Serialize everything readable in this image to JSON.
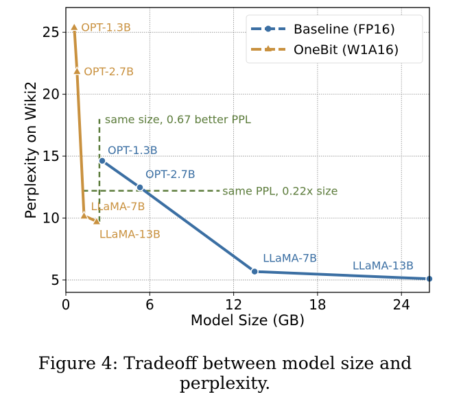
{
  "chart_data": {
    "type": "line",
    "xlabel": "Model Size (GB)",
    "ylabel": "Perplexity on Wiki2",
    "xlim": [
      0,
      26
    ],
    "ylim": [
      4,
      27
    ],
    "xticks": [
      0,
      6,
      12,
      18,
      24
    ],
    "yticks": [
      5,
      10,
      15,
      20,
      25
    ],
    "grid": true,
    "legend_position": "top-right",
    "series": [
      {
        "name": "Baseline (FP16)",
        "color": "#3b6fa3",
        "marker": "circle",
        "points": [
          {
            "label": "OPT-1.3B",
            "x": 2.6,
            "y": 14.62
          },
          {
            "label": "OPT-2.7B",
            "x": 5.3,
            "y": 12.47
          },
          {
            "label": "LLaMA-7B",
            "x": 13.5,
            "y": 5.68
          },
          {
            "label": "LLaMA-13B",
            "x": 26.0,
            "y": 5.09
          }
        ]
      },
      {
        "name": "OneBit (W1A16)",
        "color": "#c9913f",
        "marker": "triangle",
        "points": [
          {
            "label": "OPT-1.3B",
            "x": 0.6,
            "y": 25.42
          },
          {
            "label": "OPT-2.7B",
            "x": 0.8,
            "y": 21.86
          },
          {
            "label": "LLaMA-7B",
            "x": 1.3,
            "y": 10.19
          },
          {
            "label": "LLaMA-13B",
            "x": 2.2,
            "y": 9.73
          }
        ]
      }
    ],
    "annotations": [
      {
        "text": "same size, 0.67 better PPL",
        "color": "#5b7b3a",
        "line": {
          "orientation": "vertical",
          "x": 2.4,
          "y_from": 9.7,
          "y_to": 18.0
        }
      },
      {
        "text": "same PPL, 0.22x size",
        "color": "#5b7b3a",
        "line": {
          "orientation": "horizontal",
          "y": 12.2,
          "x_from": 1.2,
          "x_to": 11.0
        }
      }
    ]
  },
  "caption": "Figure 4: Tradeoff between model size and perplexity."
}
